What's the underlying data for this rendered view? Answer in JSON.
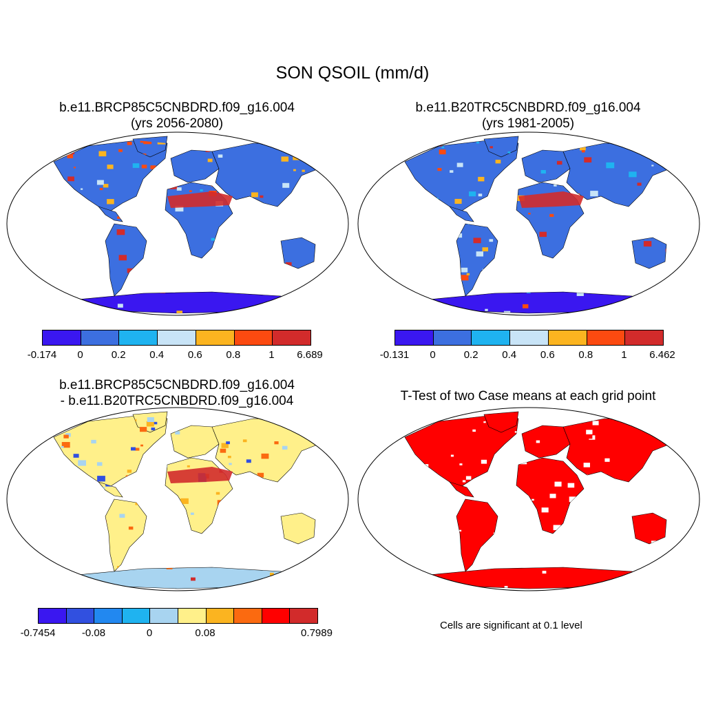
{
  "title": "SON QSOIL (mm/d)",
  "panels": [
    {
      "title_line1": "b.e11.BRCP85C5CNBDRD.f09_g16.004",
      "title_line2": "(yrs 2056-2080)"
    },
    {
      "title_line1": "b.e11.B20TRC5CNBDRD.f09_g16.004",
      "title_line2": "(yrs 1981-2005)"
    },
    {
      "title_line1": "b.e11.BRCP85C5CNBDRD.f09_g16.004",
      "title_line2": "- b.e11.B20TRC5CNBDRD.f09_g16.004"
    },
    {
      "title_line1": "T-Test of two Case means at each grid point",
      "title_line2": ""
    }
  ],
  "colorbars": [
    {
      "colors": [
        "#3a17f0",
        "#3c6fe0",
        "#1fb3f0",
        "#c8e4f7",
        "#fbb420",
        "#fb4a10",
        "#d22b2b"
      ],
      "labels": [
        "-0.174",
        "0",
        "0.2",
        "0.4",
        "0.6",
        "0.8",
        "1",
        "6.689"
      ]
    },
    {
      "colors": [
        "#3a17f0",
        "#3c6fe0",
        "#1fb3f0",
        "#c8e4f7",
        "#fbb420",
        "#fb4a10",
        "#d22b2b"
      ],
      "labels": [
        "-0.131",
        "0",
        "0.2",
        "0.4",
        "0.6",
        "0.8",
        "1",
        "6.462"
      ]
    },
    {
      "colors": [
        "#3a17f0",
        "#3150e0",
        "#2288f0",
        "#1fb3f0",
        "#a8d4f0",
        "#fff08a",
        "#fbb420",
        "#fb6a10",
        "#ff0000",
        "#d22b2b"
      ],
      "labels": [
        "-0.7454",
        "",
        "-0.08",
        "",
        "0",
        "",
        "0.08",
        "",
        "",
        "",
        "0.7989"
      ]
    }
  ],
  "significance_note": "Cells are significant at 0.1 level"
}
